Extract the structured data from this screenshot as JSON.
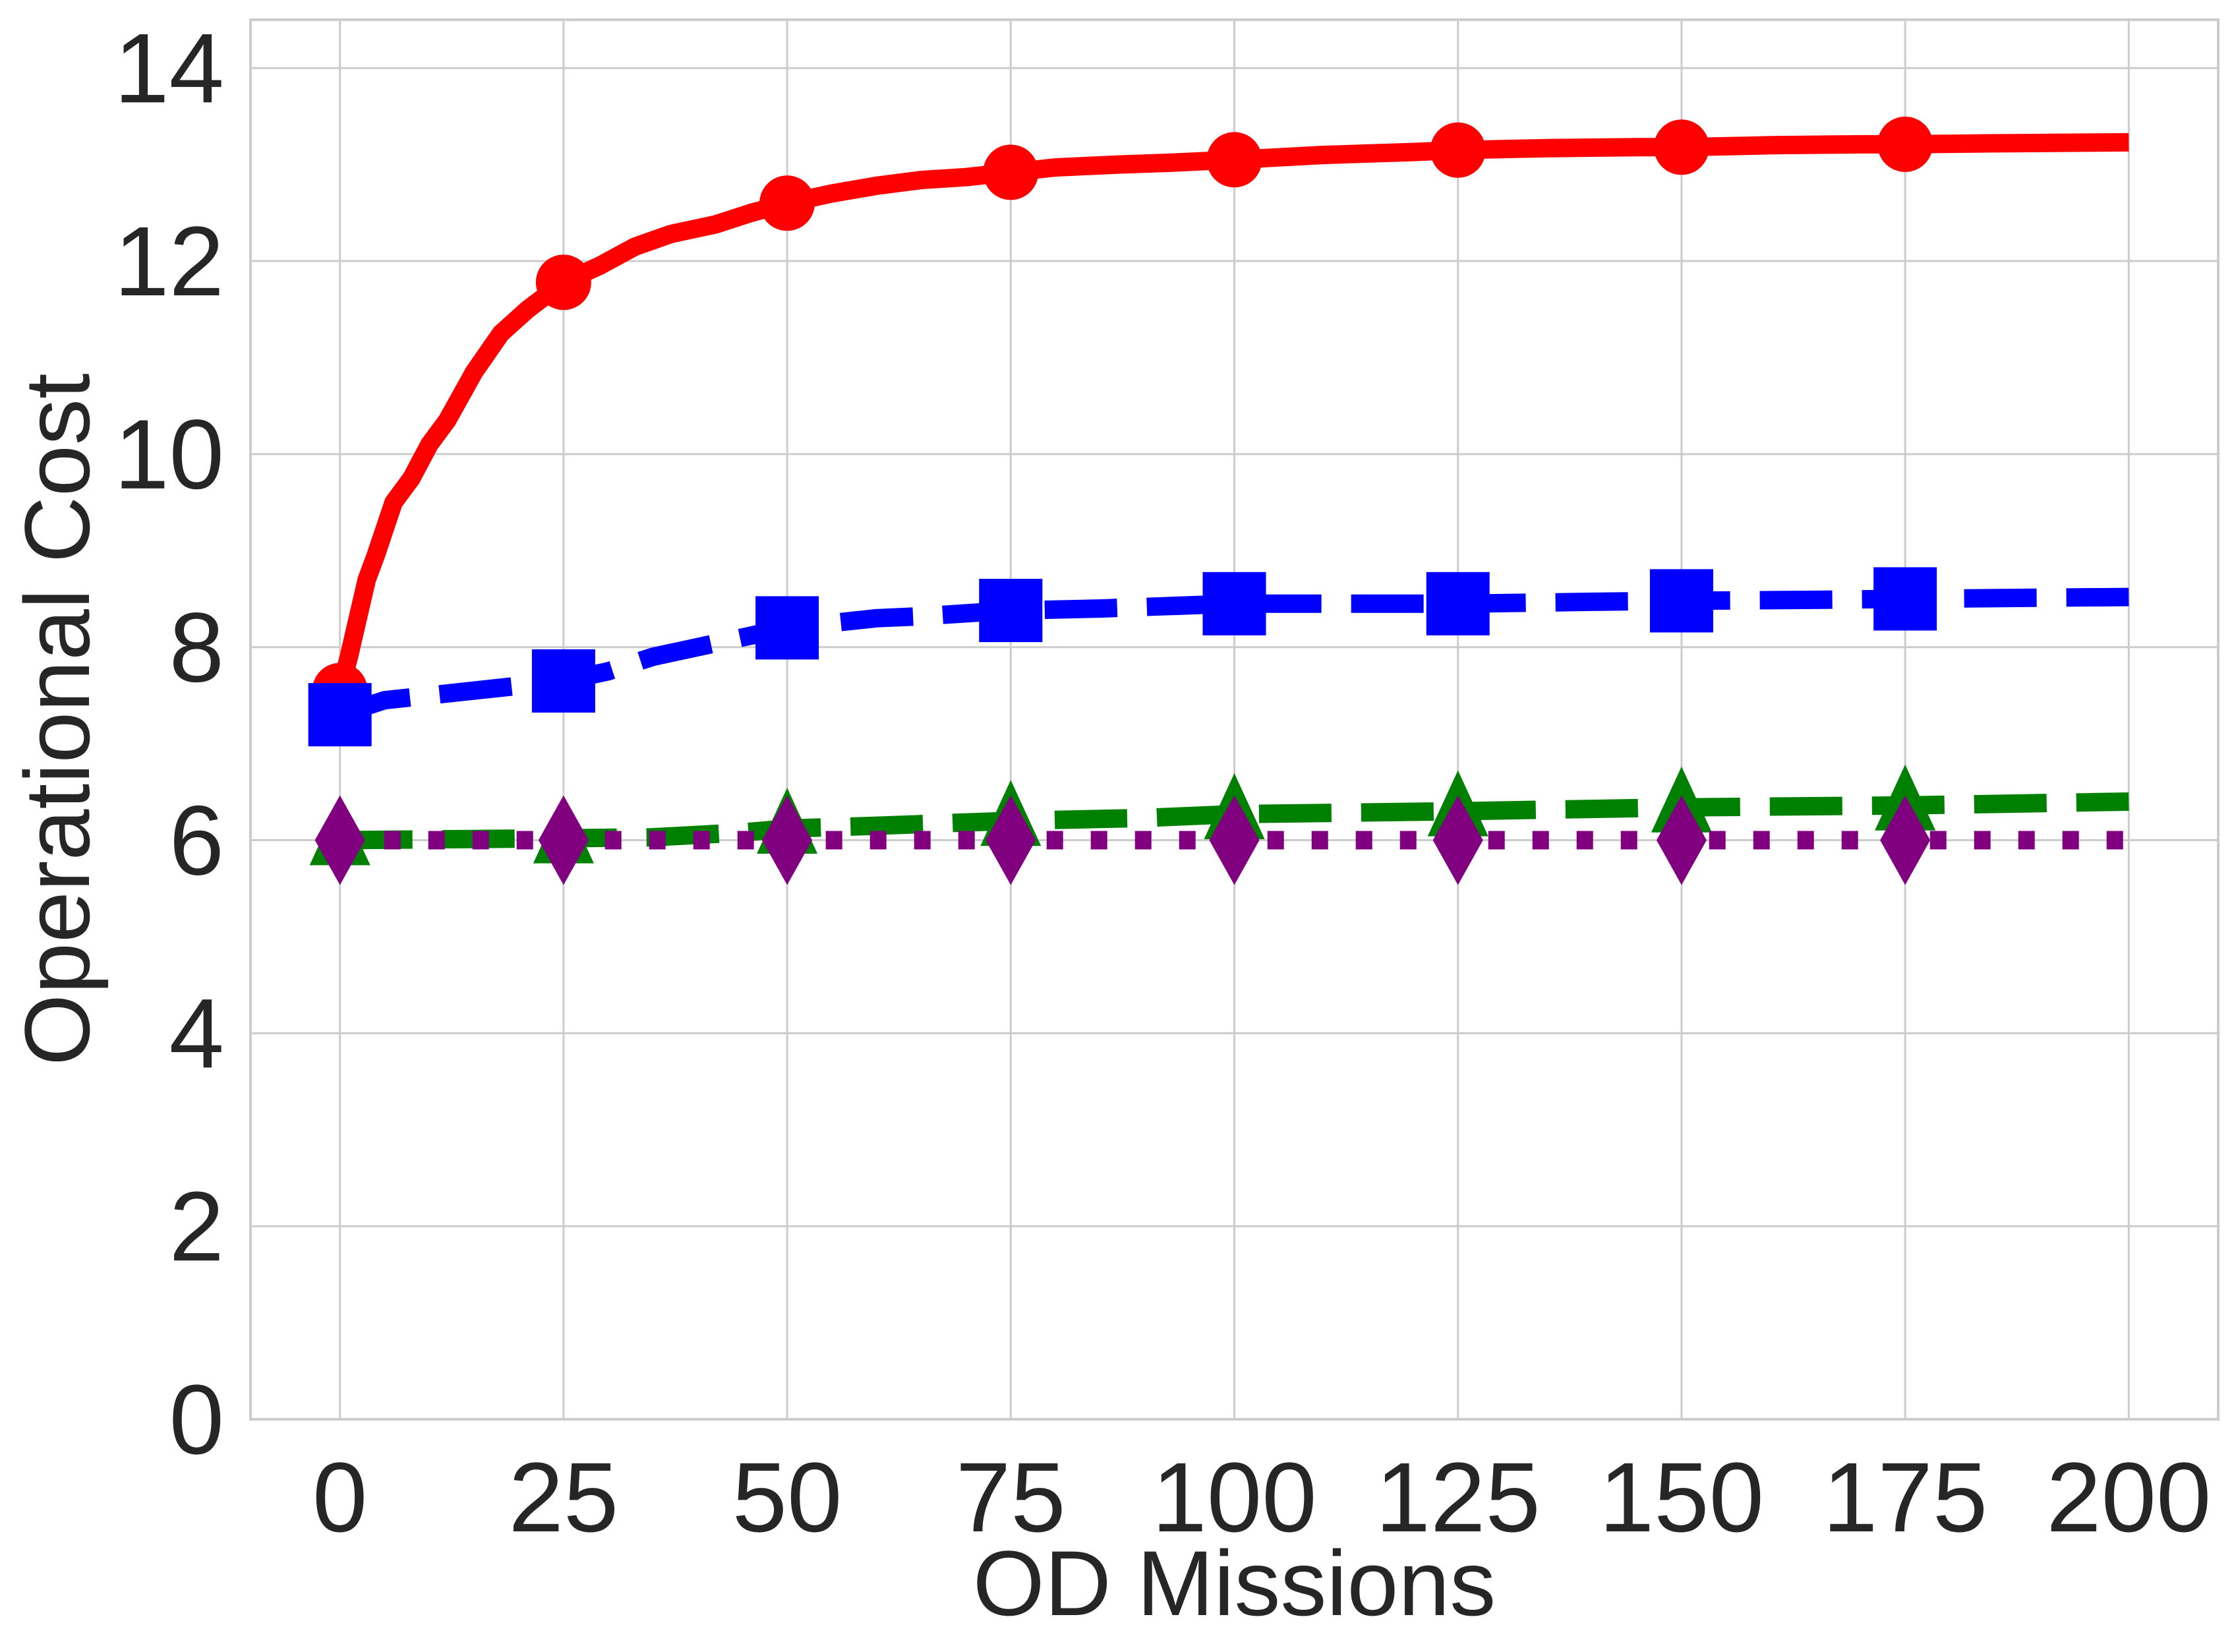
{
  "chart_data": {
    "type": "line",
    "title": "",
    "xlabel": "OD Missions",
    "ylabel": "Operational Cost",
    "xlim": [
      -10,
      210
    ],
    "ylim": [
      0,
      14.5
    ],
    "xticks": [
      0,
      25,
      50,
      75,
      100,
      125,
      150,
      175,
      200
    ],
    "yticks": [
      0,
      2,
      4,
      6,
      8,
      10,
      12,
      14
    ],
    "grid": true,
    "legend": "none",
    "series": [
      {
        "color": "#ff0000",
        "linestyle": "solid",
        "marker": "circle",
        "x": [
          0,
          1,
          2,
          3,
          4,
          6,
          8,
          10,
          12,
          15,
          18,
          21,
          25,
          29,
          33,
          37,
          42,
          46,
          50,
          55,
          60,
          65,
          70,
          75,
          80,
          87,
          93,
          100,
          110,
          120,
          125,
          135,
          145,
          150,
          160,
          170,
          175,
          185,
          200
        ],
        "y": [
          7.55,
          7.9,
          8.3,
          8.7,
          8.95,
          9.5,
          9.75,
          10.1,
          10.35,
          10.85,
          11.25,
          11.5,
          11.78,
          11.95,
          12.15,
          12.28,
          12.38,
          12.5,
          12.6,
          12.7,
          12.78,
          12.84,
          12.87,
          12.92,
          12.97,
          13.0,
          13.02,
          13.05,
          13.1,
          13.13,
          13.15,
          13.17,
          13.18,
          13.18,
          13.2,
          13.21,
          13.21,
          13.22,
          13.23
        ],
        "marker_x": [
          0,
          25,
          50,
          75,
          100,
          125,
          150,
          175
        ],
        "marker_y": [
          7.55,
          11.78,
          12.6,
          12.92,
          13.05,
          13.15,
          13.18,
          13.21
        ]
      },
      {
        "color": "#0000ff",
        "linestyle": "dashed",
        "marker": "square",
        "x": [
          0,
          5,
          10,
          15,
          20,
          25,
          30,
          35,
          40,
          45,
          50,
          55,
          60,
          65,
          70,
          75,
          85,
          100,
          115,
          125,
          140,
          150,
          165,
          175,
          200
        ],
        "y": [
          7.3,
          7.45,
          7.5,
          7.55,
          7.6,
          7.65,
          7.75,
          7.9,
          8.0,
          8.1,
          8.2,
          8.25,
          8.3,
          8.32,
          8.35,
          8.38,
          8.4,
          8.45,
          8.45,
          8.45,
          8.47,
          8.48,
          8.49,
          8.5,
          8.52
        ],
        "marker_x": [
          0,
          25,
          50,
          75,
          100,
          125,
          150,
          175
        ],
        "marker_y": [
          7.3,
          7.65,
          8.2,
          8.38,
          8.45,
          8.45,
          8.48,
          8.5
        ]
      },
      {
        "color": "#008000",
        "linestyle": "dashed",
        "marker": "triangle",
        "x": [
          0,
          25,
          35,
          45,
          50,
          60,
          75,
          90,
          100,
          125,
          150,
          175,
          200
        ],
        "y": [
          6.0,
          6.02,
          6.03,
          6.08,
          6.12,
          6.15,
          6.2,
          6.23,
          6.27,
          6.3,
          6.34,
          6.36,
          6.4
        ],
        "marker_x": [
          0,
          25,
          50,
          75,
          100,
          125,
          150,
          175
        ],
        "marker_y": [
          6.0,
          6.02,
          6.12,
          6.2,
          6.27,
          6.3,
          6.34,
          6.36
        ]
      },
      {
        "color": "#800080",
        "linestyle": "dotted",
        "marker": "diamond",
        "x": [
          0,
          200
        ],
        "y": [
          6.0,
          6.0
        ],
        "marker_x": [
          0,
          25,
          50,
          75,
          100,
          125,
          150,
          175
        ],
        "marker_y": [
          6.0,
          6.0,
          6.0,
          6.0,
          6.0,
          6.0,
          6.0,
          6.0
        ]
      }
    ]
  }
}
